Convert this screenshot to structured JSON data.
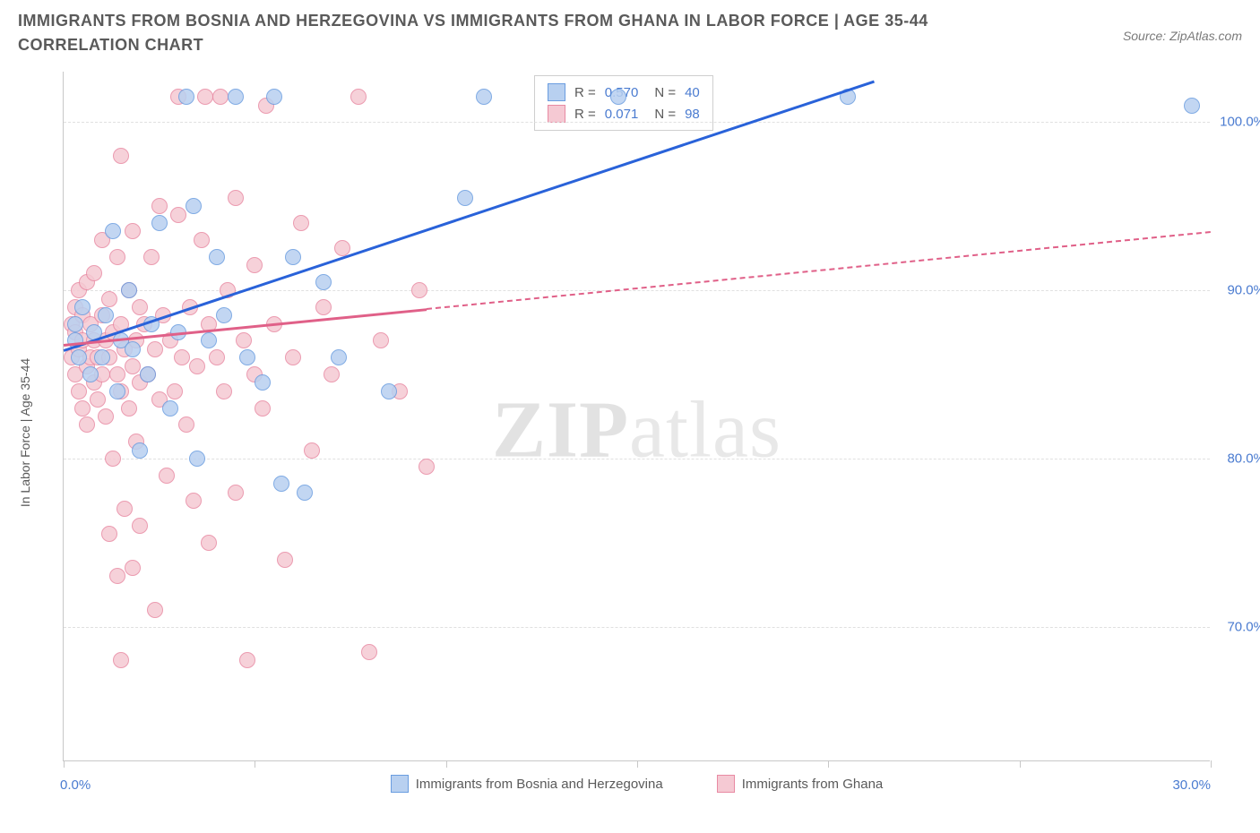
{
  "title": "IMMIGRANTS FROM BOSNIA AND HERZEGOVINA VS IMMIGRANTS FROM GHANA IN LABOR FORCE | AGE 35-44 CORRELATION CHART",
  "source": "Source: ZipAtlas.com",
  "y_axis_label": "In Labor Force | Age 35-44",
  "watermark_bold": "ZIP",
  "watermark_light": "atlas",
  "chart": {
    "type": "scatter",
    "background_color": "#ffffff",
    "grid_color": "#e0e0e0",
    "axis_color": "#c8c8c8",
    "xlim": [
      0,
      30
    ],
    "ylim": [
      62,
      103
    ],
    "xtick_positions": [
      0,
      5,
      10,
      15,
      20,
      25,
      30
    ],
    "xtick_labels": {
      "0": "0.0%",
      "30": "30.0%"
    },
    "ytick_positions": [
      70,
      80,
      90,
      100
    ],
    "ytick_labels": [
      "70.0%",
      "80.0%",
      "90.0%",
      "100.0%"
    ],
    "series": [
      {
        "name": "Immigrants from Bosnia and Herzegovina",
        "fill": "#b8d0f0",
        "stroke": "#6a9de0",
        "trend_color": "#2962d9",
        "R": "0.570",
        "N": "40",
        "trend": {
          "x1": 0,
          "y1": 86.5,
          "x2": 21.2,
          "y2": 102.5,
          "solid_until_x": 21.2
        },
        "points": [
          [
            0.3,
            87
          ],
          [
            0.3,
            88
          ],
          [
            0.4,
            86
          ],
          [
            0.5,
            89
          ],
          [
            0.7,
            85
          ],
          [
            0.8,
            87.5
          ],
          [
            1.0,
            86
          ],
          [
            1.1,
            88.5
          ],
          [
            1.3,
            93.5
          ],
          [
            1.4,
            84
          ],
          [
            1.5,
            87
          ],
          [
            1.7,
            90
          ],
          [
            1.8,
            86.5
          ],
          [
            2.0,
            80.5
          ],
          [
            2.2,
            85
          ],
          [
            2.3,
            88
          ],
          [
            2.5,
            94
          ],
          [
            2.8,
            83
          ],
          [
            3.0,
            87.5
          ],
          [
            3.2,
            101.5
          ],
          [
            3.4,
            95
          ],
          [
            3.5,
            80
          ],
          [
            3.8,
            87
          ],
          [
            4.0,
            92
          ],
          [
            4.2,
            88.5
          ],
          [
            4.5,
            101.5
          ],
          [
            4.8,
            86
          ],
          [
            5.2,
            84.5
          ],
          [
            5.5,
            101.5
          ],
          [
            5.7,
            78.5
          ],
          [
            6.0,
            92
          ],
          [
            6.3,
            78
          ],
          [
            6.8,
            90.5
          ],
          [
            7.2,
            86
          ],
          [
            8.5,
            84
          ],
          [
            10.5,
            95.5
          ],
          [
            11.0,
            101.5
          ],
          [
            14.5,
            101.5
          ],
          [
            20.5,
            101.5
          ],
          [
            29.5,
            101
          ]
        ]
      },
      {
        "name": "Immigrants from Ghana",
        "fill": "#f5c9d3",
        "stroke": "#e88aa3",
        "trend_color": "#e06088",
        "R": "0.071",
        "N": "98",
        "trend": {
          "x1": 0,
          "y1": 86.8,
          "x2": 30,
          "y2": 93.5,
          "solid_until_x": 9.5
        },
        "points": [
          [
            0.2,
            86
          ],
          [
            0.2,
            88
          ],
          [
            0.3,
            85
          ],
          [
            0.3,
            87.5
          ],
          [
            0.3,
            89
          ],
          [
            0.4,
            84
          ],
          [
            0.4,
            86.5
          ],
          [
            0.4,
            90
          ],
          [
            0.5,
            83
          ],
          [
            0.5,
            87
          ],
          [
            0.5,
            88.5
          ],
          [
            0.6,
            82
          ],
          [
            0.6,
            85.5
          ],
          [
            0.6,
            90.5
          ],
          [
            0.7,
            86
          ],
          [
            0.7,
            88
          ],
          [
            0.8,
            84.5
          ],
          [
            0.8,
            87
          ],
          [
            0.8,
            91
          ],
          [
            0.9,
            83.5
          ],
          [
            0.9,
            86
          ],
          [
            1.0,
            85
          ],
          [
            1.0,
            88.5
          ],
          [
            1.0,
            93
          ],
          [
            1.1,
            82.5
          ],
          [
            1.1,
            87
          ],
          [
            1.2,
            75.5
          ],
          [
            1.2,
            86
          ],
          [
            1.2,
            89.5
          ],
          [
            1.3,
            80
          ],
          [
            1.3,
            87.5
          ],
          [
            1.4,
            73
          ],
          [
            1.4,
            85
          ],
          [
            1.4,
            92
          ],
          [
            1.5,
            68
          ],
          [
            1.5,
            84
          ],
          [
            1.5,
            88
          ],
          [
            1.5,
            98
          ],
          [
            1.6,
            77
          ],
          [
            1.6,
            86.5
          ],
          [
            1.7,
            83
          ],
          [
            1.7,
            90
          ],
          [
            1.8,
            73.5
          ],
          [
            1.8,
            85.5
          ],
          [
            1.8,
            93.5
          ],
          [
            1.9,
            81
          ],
          [
            1.9,
            87
          ],
          [
            2.0,
            76
          ],
          [
            2.0,
            84.5
          ],
          [
            2.0,
            89
          ],
          [
            2.1,
            88
          ],
          [
            2.2,
            85
          ],
          [
            2.3,
            92
          ],
          [
            2.4,
            71
          ],
          [
            2.4,
            86.5
          ],
          [
            2.5,
            83.5
          ],
          [
            2.5,
            95
          ],
          [
            2.6,
            88.5
          ],
          [
            2.7,
            79
          ],
          [
            2.8,
            87
          ],
          [
            2.9,
            84
          ],
          [
            3.0,
            94.5
          ],
          [
            3.0,
            101.5
          ],
          [
            3.1,
            86
          ],
          [
            3.2,
            82
          ],
          [
            3.3,
            89
          ],
          [
            3.4,
            77.5
          ],
          [
            3.5,
            85.5
          ],
          [
            3.6,
            93
          ],
          [
            3.7,
            101.5
          ],
          [
            3.8,
            75
          ],
          [
            3.8,
            88
          ],
          [
            4.0,
            86
          ],
          [
            4.1,
            101.5
          ],
          [
            4.2,
            84
          ],
          [
            4.3,
            90
          ],
          [
            4.5,
            78
          ],
          [
            4.5,
            95.5
          ],
          [
            4.7,
            87
          ],
          [
            4.8,
            68
          ],
          [
            5.0,
            85
          ],
          [
            5.0,
            91.5
          ],
          [
            5.2,
            83
          ],
          [
            5.3,
            101
          ],
          [
            5.5,
            88
          ],
          [
            5.8,
            74
          ],
          [
            6.0,
            86
          ],
          [
            6.2,
            94
          ],
          [
            6.5,
            80.5
          ],
          [
            6.8,
            89
          ],
          [
            7.0,
            85
          ],
          [
            7.3,
            92.5
          ],
          [
            7.7,
            101.5
          ],
          [
            8.0,
            68.5
          ],
          [
            8.3,
            87
          ],
          [
            8.8,
            84
          ],
          [
            9.3,
            90
          ],
          [
            9.5,
            79.5
          ]
        ]
      }
    ]
  },
  "legend_top": {
    "r_label": "R =",
    "n_label": "N ="
  },
  "colors": {
    "title": "#5a5a5a",
    "label": "#5a5a5a",
    "tick": "#4a7bd0"
  }
}
